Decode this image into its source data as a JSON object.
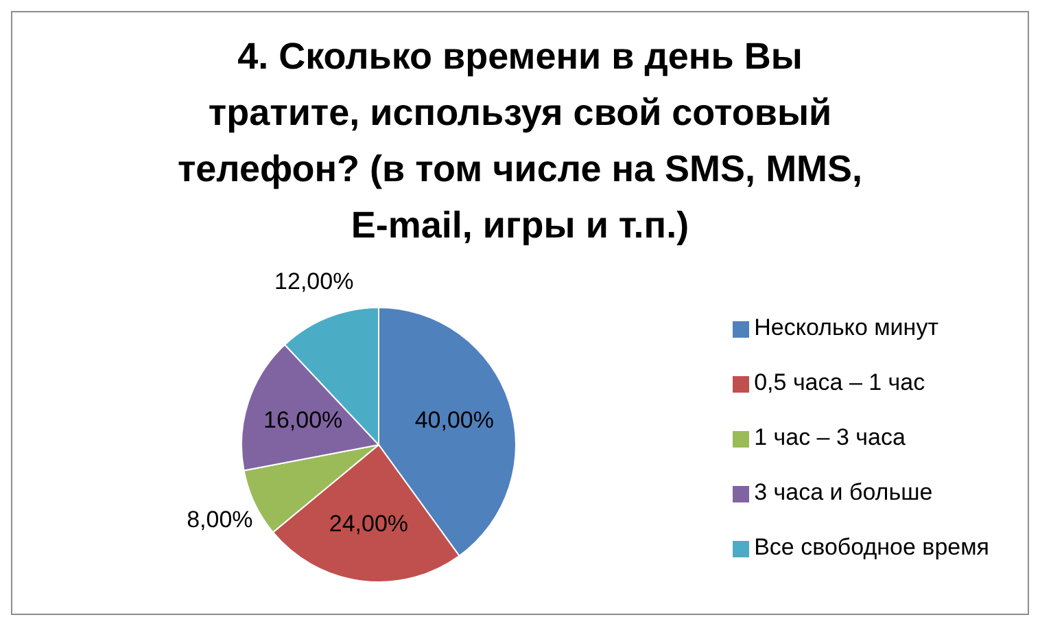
{
  "chart_data": {
    "type": "pie",
    "title": "4. Сколько времени в день Вы тратите, используя свой сотовый телефон? (в том числе на SMS, MMS, E-mail, игры и т.п.)",
    "categories": [
      "Несколько минут",
      "0,5 часа – 1 час",
      "1 час – 3 часа",
      "3 часа и больше",
      "Все свободное время"
    ],
    "values": [
      40,
      24,
      8,
      16,
      12
    ],
    "colors": [
      "#4f81bd",
      "#c0504d",
      "#9bbb59",
      "#8064a2",
      "#4bacc6"
    ],
    "value_labels": [
      "40,00%",
      "24,00%",
      "8,00%",
      "16,00%",
      "12,00%"
    ],
    "legend": "right"
  }
}
